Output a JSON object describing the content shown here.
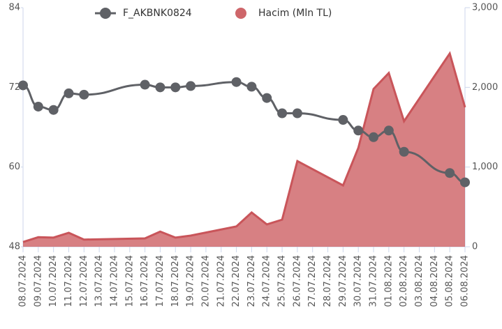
{
  "chart_data": {
    "type": "line",
    "categories": [
      "08.07.2024",
      "09.07.2024",
      "10.07.2024",
      "11.07.2024",
      "12.07.2024",
      "13.07.2024",
      "14.07.2024",
      "15.07.2024",
      "16.07.2024",
      "17.07.2024",
      "18.07.2024",
      "19.07.2024",
      "20.07.2024",
      "21.07.2024",
      "22.07.2024",
      "23.07.2024",
      "24.07.2024",
      "25.07.2024",
      "26.07.2024",
      "27.07.2024",
      "28.07.2024",
      "29.07.2024",
      "30.07.2024",
      "31.07.2024",
      "01.08.2024",
      "02.08.2024",
      "03.08.2024",
      "04.08.2024",
      "05.08.2024",
      "06.08.2024"
    ],
    "series": [
      {
        "name": "F_AKBNK0824",
        "color": "#5f6166",
        "type": "line",
        "x": [
          "08.07.2024",
          "09.07.2024",
          "10.07.2024",
          "11.07.2024",
          "12.07.2024",
          "16.07.2024",
          "17.07.2024",
          "18.07.2024",
          "19.07.2024",
          "22.07.2024",
          "23.07.2024",
          "24.07.2024",
          "25.07.2024",
          "26.07.2024",
          "29.07.2024",
          "30.07.2024",
          "31.07.2024",
          "01.08.2024",
          "02.08.2024",
          "05.08.2024",
          "06.08.2024"
        ],
        "values": [
          72.3,
          69.1,
          68.6,
          71.1,
          70.9,
          72.4,
          72.0,
          72.0,
          72.2,
          72.8,
          72.1,
          70.4,
          68.1,
          68.1,
          67.1,
          65.5,
          64.5,
          65.5,
          62.3,
          59.1,
          57.7
        ]
      },
      {
        "name": "Hacim (Mln TL)",
        "color": "#c9555a",
        "type": "area",
        "axis": "y2",
        "x": [
          "08.07.2024",
          "09.07.2024",
          "10.07.2024",
          "11.07.2024",
          "12.07.2024",
          "16.07.2024",
          "17.07.2024",
          "18.07.2024",
          "19.07.2024",
          "22.07.2024",
          "23.07.2024",
          "24.07.2024",
          "25.07.2024",
          "26.07.2024",
          "29.07.2024",
          "30.07.2024",
          "31.07.2024",
          "01.08.2024",
          "02.08.2024",
          "05.08.2024",
          "06.08.2024"
        ],
        "values": [
          60,
          120,
          115,
          175,
          90,
          105,
          190,
          115,
          140,
          255,
          430,
          280,
          340,
          1075,
          770,
          1240,
          1980,
          2180,
          1575,
          2425,
          1750
        ]
      }
    ],
    "ylim": [
      48,
      84
    ],
    "yticks": [
      48,
      60,
      72,
      84
    ],
    "y2lim": [
      0,
      3000
    ],
    "y2ticks": [
      0,
      {
        "value": 1000,
        "label": "1,000"
      },
      {
        "value": 2000,
        "label": "2,000"
      },
      {
        "value": 3000,
        "label": "3,000"
      }
    ],
    "legend": "top",
    "grid": false
  }
}
